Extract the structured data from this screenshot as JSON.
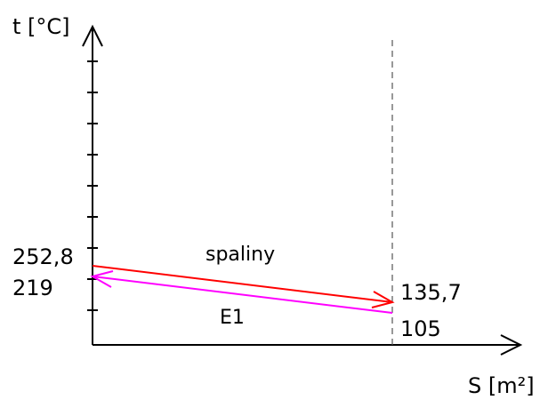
{
  "diagram": {
    "y_axis_label": "t [°C]",
    "x_axis_label": "S [m²]",
    "hot_stream": {
      "name": "spaliny",
      "t_in_label": "252,8",
      "t_out_label": "135,7",
      "color": "#ff0000"
    },
    "cold_stream": {
      "name": "E1",
      "t_in_label": "105",
      "t_out_label": "219",
      "color": "#ff00ff"
    },
    "axis_color": "#000000",
    "dashed_line_color": "#555555"
  }
}
